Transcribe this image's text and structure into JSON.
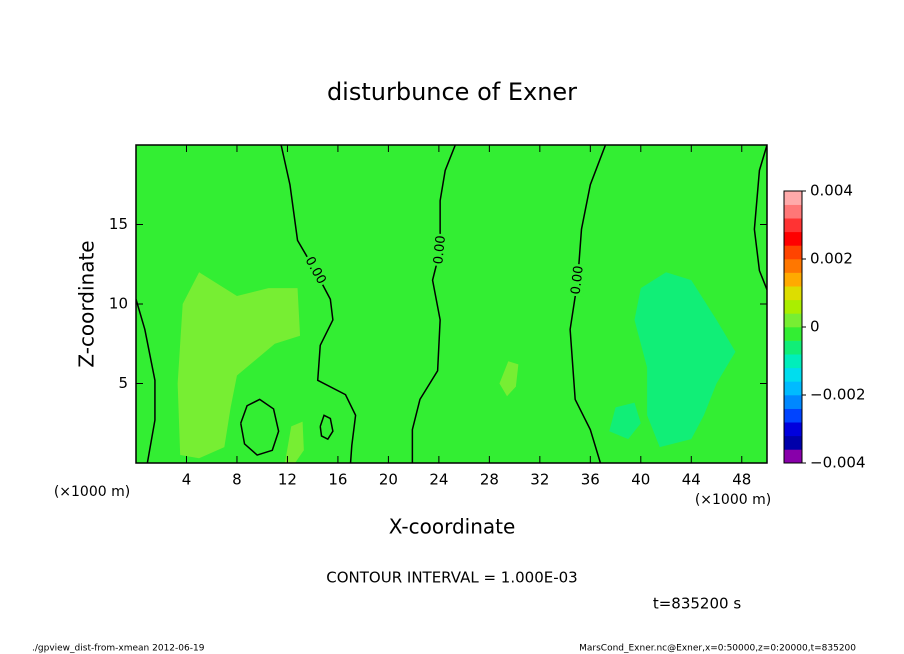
{
  "chart_data": {
    "type": "contour",
    "title": "disturbunce of Exner",
    "x_label": "X-coordinate",
    "y_label": "Z-coordinate",
    "x_unit": "(×1000 m)",
    "xlim": [
      0,
      50
    ],
    "ylim": [
      0,
      20
    ],
    "xticks": [
      4,
      8,
      12,
      16,
      20,
      24,
      28,
      32,
      36,
      40,
      44,
      48
    ],
    "yticks": [
      5,
      10,
      15
    ],
    "background": "#33ee33",
    "regions": [
      {
        "color": "#77ee33",
        "x": [
          3.5,
          3.3,
          3.7,
          5,
          8,
          10.5,
          12.8,
          13,
          11,
          8,
          7.5,
          7,
          5
        ],
        "y": [
          0.5,
          5,
          10,
          12,
          10.5,
          11,
          11,
          8,
          7.5,
          5.5,
          3.5,
          1,
          0.3
        ]
      },
      {
        "color": "#77ee33",
        "x": [
          11.8,
          12.3,
          13.2,
          13.3,
          12.6
        ],
        "y": [
          0,
          2.3,
          2.6,
          0.8,
          0
        ]
      },
      {
        "color": "#77ee33",
        "x": [
          28.8,
          29.5,
          30.3,
          30.1,
          29.4
        ],
        "y": [
          5.0,
          6.4,
          6.2,
          4.8,
          4.2
        ]
      },
      {
        "color": "#11ee77",
        "x": [
          39.5,
          40,
          42,
          44,
          46,
          47.5,
          46,
          45,
          44,
          41.5,
          40.5,
          40.5
        ],
        "y": [
          9,
          11,
          12,
          11.5,
          9,
          7,
          5,
          3,
          1.5,
          1,
          3,
          6
        ]
      },
      {
        "color": "#11ee77",
        "x": [
          37.5,
          38,
          39.5,
          40,
          39
        ],
        "y": [
          2,
          3.5,
          3.8,
          2.5,
          1.5
        ]
      }
    ],
    "contours": [
      {
        "label": "0.00",
        "x": [
          11.5,
          12.2,
          12.8,
          14.2,
          15.4,
          15.6,
          14.6,
          14.4,
          16.6,
          17.4,
          17.1,
          17.0
        ],
        "y": [
          20,
          17.5,
          14.0,
          12.1,
          10.3,
          9.0,
          7.4,
          5.2,
          4.3,
          3.0,
          1.1,
          0
        ]
      },
      {
        "label": "0.00",
        "x": [
          25.3,
          24.5,
          24.1,
          24.1,
          23.5,
          24.1,
          23.9,
          22.5,
          21.9,
          21.9
        ],
        "y": [
          20,
          18.4,
          16.5,
          13.4,
          11.5,
          9.0,
          5.8,
          4.0,
          2.1,
          0
        ]
      },
      {
        "label": "0.00",
        "x": [
          37.2,
          36.0,
          35.3,
          35.0,
          34.4,
          34.8,
          36.0,
          36.8
        ],
        "y": [
          20,
          17.5,
          14.7,
          11.5,
          8.4,
          4.0,
          2.1,
          0
        ]
      },
      {
        "x": [
          50,
          49.4,
          49.0,
          49.4,
          50
        ],
        "y": [
          20,
          18.4,
          14.7,
          12.1,
          10.9
        ]
      },
      {
        "x": [
          0,
          0.7,
          1.5,
          1.5,
          0.9
        ],
        "y": [
          10.3,
          8.4,
          5.2,
          2.7,
          0
        ]
      },
      {
        "x": [
          8.3,
          8.8,
          9.8,
          10.9,
          11.3,
          10.8,
          9.6,
          8.6,
          8.3
        ],
        "y": [
          2.5,
          3.6,
          4.0,
          3.4,
          2.0,
          0.8,
          0.5,
          1.2,
          2.5
        ]
      },
      {
        "x": [
          14.6,
          14.9,
          15.4,
          15.6,
          15.2,
          14.7,
          14.6
        ],
        "y": [
          2.3,
          3.0,
          2.8,
          2.0,
          1.5,
          1.7,
          2.3
        ]
      }
    ],
    "colorbar": {
      "lim": [
        -0.004,
        0.004
      ],
      "ticks": [
        {
          "value": -0.004,
          "label": "−0.004"
        },
        {
          "value": -0.002,
          "label": "−0.002"
        },
        0,
        0.002,
        0.004
      ],
      "colors": [
        "#8800aa",
        "#0000aa",
        "#0000dd",
        "#0044ff",
        "#0088ff",
        "#00bbff",
        "#00ddee",
        "#00eebb",
        "#11ee77",
        "#33ee33",
        "#77ee33",
        "#aaee00",
        "#dddd00",
        "#ffaa00",
        "#ff7700",
        "#ff4400",
        "#ff0000",
        "#ff3333",
        "#ff7777",
        "#ffaaaa"
      ]
    },
    "annotation": "CONTOUR INTERVAL = 1.000E-03",
    "time": "t=835200 s",
    "footer_left": "./gpview_dist-from-xmean  2012-06-19",
    "footer_right": "MarsCond_Exner.nc@Exner,x=0:50000,z=0:20000,t=835200"
  }
}
